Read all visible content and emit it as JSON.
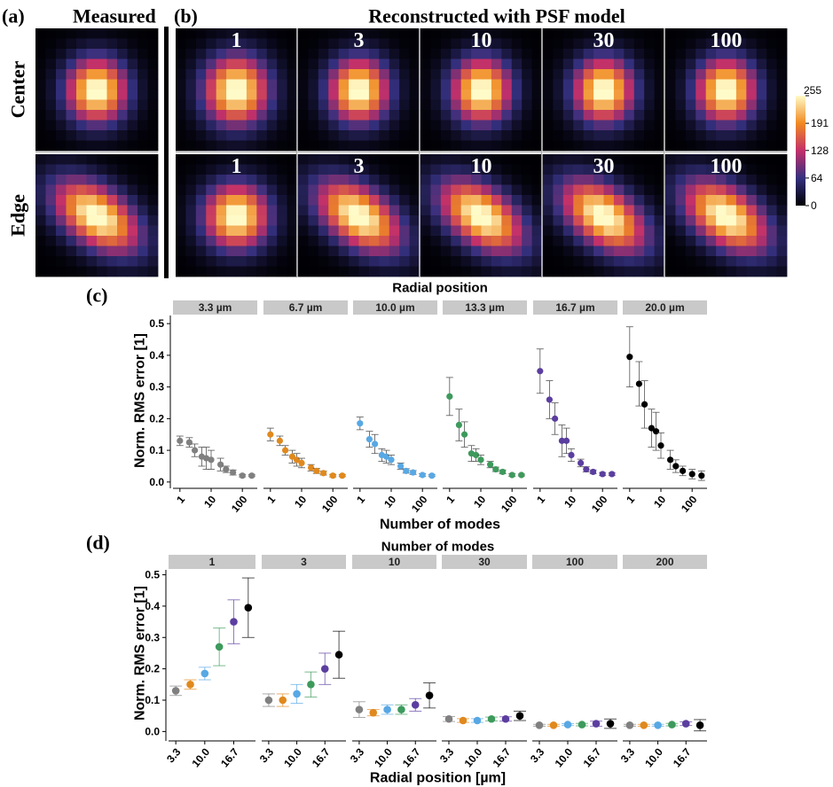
{
  "panel_a": {
    "label": "(a)",
    "title": "Measured"
  },
  "panel_b": {
    "label": "(b)",
    "title": "Reconstructed with PSF model",
    "columns": [
      "1",
      "3",
      "10",
      "30",
      "100"
    ]
  },
  "rows": [
    "Center",
    "Edge"
  ],
  "colorbar": {
    "lim": [
      0,
      255
    ],
    "ticks": [
      255,
      191,
      128,
      64,
      0
    ]
  },
  "chart_data": [
    {
      "type": "scatter",
      "panel_label": "(c)",
      "title": "Radial position",
      "xlabel": "Number of modes",
      "ylabel": "Norm. RMS error [1]",
      "xscale": "log",
      "xlim": [
        0.6,
        300
      ],
      "xticks": [
        1,
        10,
        100
      ],
      "ylim": [
        -0.02,
        0.52
      ],
      "yticks": [
        {
          "value": 0,
          "label": "0.0"
        },
        0.1,
        0.2,
        0.3,
        0.4,
        0.5
      ],
      "x": [
        1,
        2,
        3,
        5,
        7,
        10,
        20,
        30,
        50,
        100,
        200
      ],
      "series": [
        {
          "name": "3.3 µm",
          "color": "#808080",
          "values": [
            0.13,
            0.125,
            0.1,
            0.08,
            0.075,
            0.07,
            0.055,
            0.04,
            0.03,
            0.02,
            0.02
          ],
          "errors": [
            0.015,
            0.015,
            0.02,
            0.03,
            0.035,
            0.03,
            0.02,
            0.01,
            0.008,
            0.004,
            0.003
          ]
        },
        {
          "name": "6.7 µm",
          "color": "#e0891e",
          "values": [
            0.15,
            0.13,
            0.1,
            0.08,
            0.07,
            0.06,
            0.045,
            0.035,
            0.028,
            0.02,
            0.02
          ],
          "errors": [
            0.02,
            0.015,
            0.015,
            0.02,
            0.02,
            0.015,
            0.01,
            0.008,
            0.006,
            0.004,
            0.003
          ]
        },
        {
          "name": "10.0 µm",
          "color": "#58a8e4",
          "values": [
            0.185,
            0.135,
            0.12,
            0.085,
            0.08,
            0.07,
            0.05,
            0.035,
            0.03,
            0.022,
            0.02
          ],
          "errors": [
            0.02,
            0.025,
            0.03,
            0.02,
            0.02,
            0.015,
            0.01,
            0.007,
            0.006,
            0.004,
            0.003
          ]
        },
        {
          "name": "13.3 µm",
          "color": "#3d9a5c",
          "values": [
            0.27,
            0.18,
            0.15,
            0.09,
            0.085,
            0.07,
            0.055,
            0.04,
            0.032,
            0.022,
            0.022
          ],
          "errors": [
            0.06,
            0.05,
            0.04,
            0.025,
            0.02,
            0.015,
            0.01,
            0.007,
            0.006,
            0.004,
            0.003
          ]
        },
        {
          "name": "16.7 µm",
          "color": "#5b3e9f",
          "values": [
            0.35,
            0.26,
            0.2,
            0.13,
            0.13,
            0.085,
            0.06,
            0.04,
            0.032,
            0.025,
            0.025
          ],
          "errors": [
            0.07,
            0.06,
            0.05,
            0.05,
            0.04,
            0.02,
            0.012,
            0.008,
            0.006,
            0.005,
            0.004
          ]
        },
        {
          "name": "20.0 µm",
          "color": "#000000",
          "values": [
            0.395,
            0.31,
            0.245,
            0.17,
            0.16,
            0.115,
            0.07,
            0.05,
            0.035,
            0.025,
            0.02
          ],
          "errors": [
            0.095,
            0.07,
            0.075,
            0.06,
            0.06,
            0.04,
            0.03,
            0.02,
            0.015,
            0.015,
            0.015
          ]
        }
      ]
    },
    {
      "type": "errorbar",
      "panel_label": "(d)",
      "title": "Number of modes",
      "xlabel": "Radial position [µm]",
      "ylabel": "Norm. RMS error [1]",
      "ylim": [
        -0.03,
        0.51
      ],
      "yticks": [
        {
          "value": 0,
          "label": "0.0"
        },
        0.1,
        0.2,
        0.3,
        0.4,
        0.5
      ],
      "categories": [
        "3.3",
        null,
        "10.0",
        null,
        "16.7",
        null
      ],
      "colors": [
        "#808080",
        "#e0891e",
        "#58a8e4",
        "#3d9a5c",
        "#5b3e9f",
        "#000000"
      ],
      "series": [
        {
          "name": "1",
          "values": [
            0.13,
            0.15,
            0.185,
            0.27,
            0.35,
            0.395
          ],
          "errors": [
            0.015,
            0.015,
            0.02,
            0.06,
            0.07,
            0.095
          ]
        },
        {
          "name": "3",
          "values": [
            0.1,
            0.1,
            0.12,
            0.15,
            0.2,
            0.245
          ],
          "errors": [
            0.02,
            0.02,
            0.03,
            0.04,
            0.05,
            0.075
          ]
        },
        {
          "name": "10",
          "values": [
            0.07,
            0.06,
            0.07,
            0.07,
            0.085,
            0.115
          ],
          "errors": [
            0.025,
            0.01,
            0.015,
            0.015,
            0.02,
            0.04
          ]
        },
        {
          "name": "30",
          "values": [
            0.04,
            0.035,
            0.035,
            0.04,
            0.04,
            0.05
          ],
          "errors": [
            0.008,
            0.006,
            0.006,
            0.006,
            0.007,
            0.015
          ]
        },
        {
          "name": "100",
          "values": [
            0.02,
            0.02,
            0.022,
            0.022,
            0.025,
            0.025
          ],
          "errors": [
            0.003,
            0.003,
            0.003,
            0.004,
            0.008,
            0.015
          ]
        },
        {
          "name": "200",
          "values": [
            0.02,
            0.02,
            0.02,
            0.022,
            0.025,
            0.02
          ],
          "errors": [
            0.003,
            0.003,
            0.003,
            0.004,
            0.006,
            0.018
          ]
        }
      ]
    }
  ]
}
